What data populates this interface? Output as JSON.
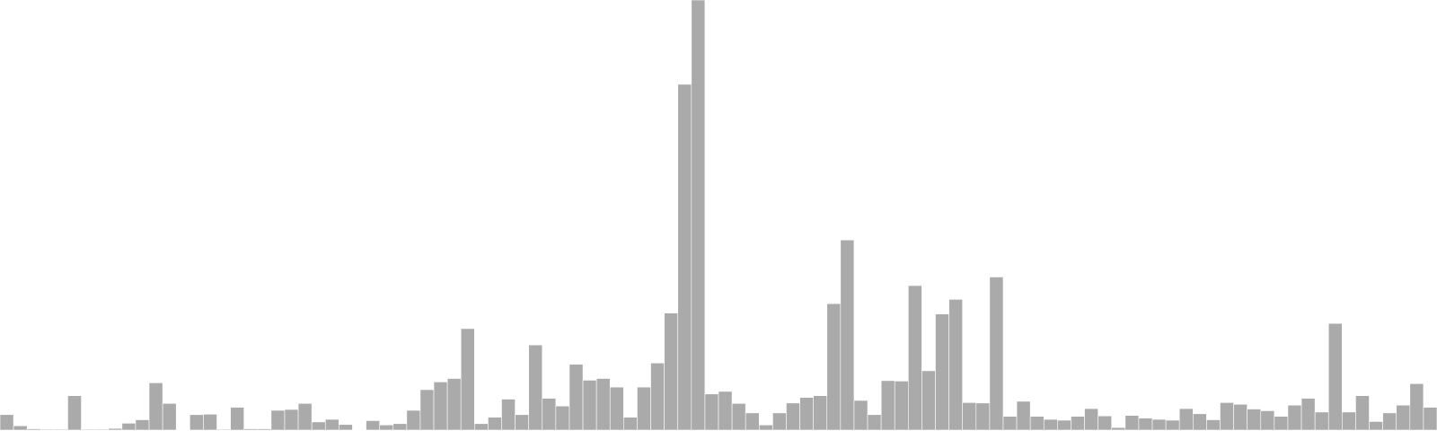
{
  "chart_data": {
    "type": "bar",
    "title": "",
    "xlabel": "",
    "ylabel": "",
    "x_ticks": [],
    "y_ticks": [],
    "grid": false,
    "legend": "none",
    "ylim": [
      0,
      100
    ],
    "series": [
      {
        "color": "#aaaaaa",
        "stroke": "#ffffff",
        "values": [
          3.6,
          1.0,
          0.3,
          0.2,
          0.2,
          8.0,
          0.2,
          0.2,
          0.4,
          1.6,
          2.4,
          11.0,
          6.2,
          0,
          3.6,
          3.7,
          0.2,
          5.3,
          0.3,
          0.3,
          4.6,
          4.8,
          6.2,
          1.9,
          2.5,
          1.3,
          0,
          2.2,
          1.2,
          1.5,
          4.6,
          9.4,
          11.2,
          12.0,
          23.6,
          1.5,
          3.0,
          7.2,
          3.6,
          19.8,
          7.4,
          5.6,
          15.3,
          11.6,
          12.0,
          10.0,
          3.0,
          10.0,
          15.6,
          27.2,
          80.4,
          100.0,
          8.4,
          9.0,
          6.2,
          4.0,
          1.2,
          4.0,
          6.3,
          7.6,
          8.0,
          29.4,
          44.2,
          6.9,
          3.6,
          11.5,
          11.4,
          33.6,
          13.8,
          27.0,
          30.4,
          6.4,
          6.3,
          35.6,
          3.2,
          6.7,
          3.2,
          2.5,
          2.3,
          3.2,
          5.0,
          3.3,
          0.6,
          3.4,
          2.8,
          2.5,
          2.3,
          5.0,
          3.8,
          2.4,
          6.4,
          6.0,
          4.9,
          4.5,
          3.2,
          5.8,
          7.4,
          4.2,
          24.8,
          4.2,
          8.0,
          2.0,
          4.0,
          5.8,
          10.8,
          5.3
        ]
      }
    ]
  }
}
